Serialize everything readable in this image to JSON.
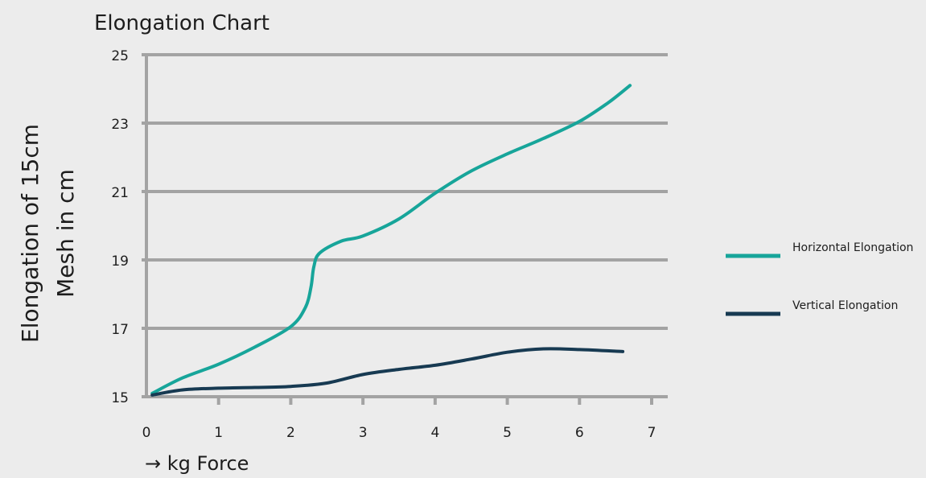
{
  "chart_data": {
    "type": "line",
    "title": "Elongation Chart",
    "xlabel": "→ kg Force",
    "ylabel": [
      "Elongation of 15cm",
      "Mesh in cm"
    ],
    "xlim": [
      0,
      7
    ],
    "ylim": [
      15,
      25
    ],
    "xticks": [
      "0",
      "1",
      "2",
      "3",
      "4",
      "5",
      "6",
      "7"
    ],
    "yticks": [
      "15",
      "17",
      "19",
      "21",
      "23",
      "25"
    ],
    "grid": "horizontal",
    "legend_position": "right",
    "series": [
      {
        "name": "Horizontal Elongation",
        "color": "#17a59a",
        "points": [
          [
            0.08,
            15.1
          ],
          [
            0.5,
            15.55
          ],
          [
            1.0,
            15.95
          ],
          [
            1.5,
            16.45
          ],
          [
            2.0,
            17.05
          ],
          [
            2.2,
            17.6
          ],
          [
            2.28,
            18.2
          ],
          [
            2.32,
            18.8
          ],
          [
            2.4,
            19.2
          ],
          [
            2.7,
            19.55
          ],
          [
            3.0,
            19.7
          ],
          [
            3.5,
            20.2
          ],
          [
            4.0,
            20.95
          ],
          [
            4.5,
            21.6
          ],
          [
            5.0,
            22.1
          ],
          [
            5.5,
            22.55
          ],
          [
            6.0,
            23.05
          ],
          [
            6.4,
            23.6
          ],
          [
            6.7,
            24.1
          ]
        ]
      },
      {
        "name": "Vertical Elongation",
        "color": "#173a52",
        "points": [
          [
            0.08,
            15.05
          ],
          [
            0.5,
            15.2
          ],
          [
            1.0,
            15.25
          ],
          [
            1.5,
            15.27
          ],
          [
            2.0,
            15.3
          ],
          [
            2.5,
            15.4
          ],
          [
            3.0,
            15.65
          ],
          [
            3.5,
            15.8
          ],
          [
            4.0,
            15.92
          ],
          [
            4.5,
            16.1
          ],
          [
            5.0,
            16.3
          ],
          [
            5.5,
            16.4
          ],
          [
            6.0,
            16.38
          ],
          [
            6.6,
            16.32
          ]
        ]
      }
    ]
  }
}
